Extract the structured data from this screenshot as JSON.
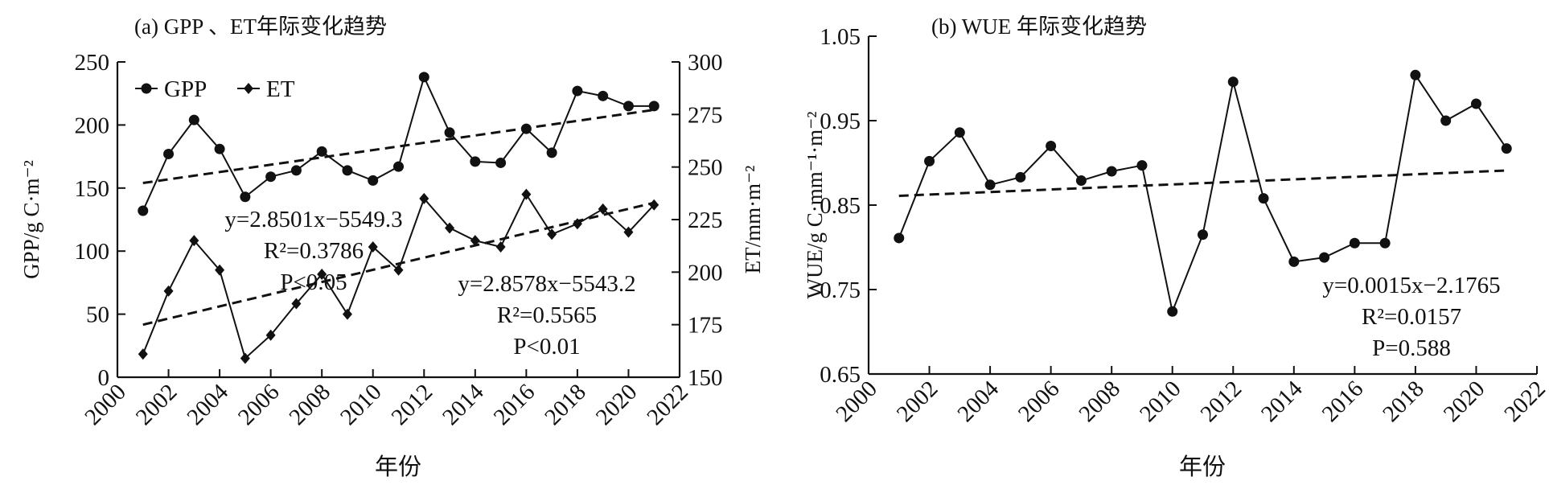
{
  "chart_data": [
    {
      "type": "line",
      "title": "(a) GPP 、ET年际变化趋势",
      "xlabel": "年份",
      "ylabel": "GPP/g C·m⁻²",
      "ylabel_right": "ET/mm·m⁻²",
      "xlim": [
        2000,
        2022
      ],
      "xticks": [
        "2000",
        "2002",
        "2004",
        "2006",
        "2008",
        "2010",
        "2012",
        "2014",
        "2016",
        "2018",
        "2020",
        "2022"
      ],
      "ylim": [
        0,
        250
      ],
      "yticks": [
        "0",
        "50",
        "100",
        "150",
        "200",
        "250"
      ],
      "ylim_right": [
        150,
        300
      ],
      "yticks_right": [
        "150",
        "175",
        "200",
        "225",
        "250",
        "275",
        "300"
      ],
      "legend": {
        "position": "top-left",
        "entries": [
          "GPP",
          "ET"
        ]
      },
      "x": [
        2001,
        2002,
        2003,
        2004,
        2005,
        2006,
        2007,
        2008,
        2009,
        2010,
        2011,
        2012,
        2013,
        2014,
        2015,
        2016,
        2017,
        2018,
        2019,
        2020,
        2021
      ],
      "series": [
        {
          "name": "GPP",
          "axis": "left",
          "marker": "circle",
          "values": [
            132,
            177,
            204,
            181,
            143,
            159,
            164,
            179,
            164,
            156,
            167,
            238,
            194,
            171,
            170,
            197,
            178,
            227,
            223,
            215,
            215
          ],
          "trend": {
            "from": [
              2001,
              154
            ],
            "to": [
              2021,
              212
            ]
          }
        },
        {
          "name": "ET",
          "axis": "right",
          "marker": "diamond",
          "values": [
            161,
            191,
            215,
            201,
            159,
            170,
            185,
            199,
            180,
            212,
            201,
            235,
            221,
            215,
            212,
            237,
            218,
            223,
            230,
            219,
            232
          ],
          "trend": {
            "from": [
              2001,
              175
            ],
            "to": [
              2021,
              233
            ]
          }
        }
      ],
      "annotations": [
        {
          "id": "gpp",
          "lines": [
            "y=2.8501x−5549.3",
            "R²=0.3786",
            "P<0.05"
          ]
        },
        {
          "id": "et",
          "lines": [
            "y=2.8578x−5543.2",
            "R²=0.5565",
            "P<0.01"
          ]
        }
      ]
    },
    {
      "type": "line",
      "title": "(b) WUE 年际变化趋势",
      "xlabel": "年份",
      "ylabel": "WUE/g C·mm⁻¹·m⁻²",
      "xlim": [
        2000,
        2022
      ],
      "xticks": [
        "2000",
        "2002",
        "2004",
        "2006",
        "2008",
        "2010",
        "2012",
        "2014",
        "2016",
        "2018",
        "2020",
        "2022"
      ],
      "ylim": [
        0.65,
        1.05
      ],
      "yticks": [
        "0.65",
        "0.75",
        "0.85",
        "0.95",
        "1.05"
      ],
      "x": [
        2001,
        2002,
        2003,
        2004,
        2005,
        2006,
        2007,
        2008,
        2009,
        2010,
        2011,
        2012,
        2013,
        2014,
        2015,
        2016,
        2017,
        2018,
        2019,
        2020,
        2021
      ],
      "series": [
        {
          "name": "WUE",
          "marker": "circle",
          "values": [
            0.811,
            0.902,
            0.936,
            0.874,
            0.883,
            0.92,
            0.879,
            0.89,
            0.897,
            0.724,
            0.815,
            0.996,
            0.858,
            0.783,
            0.788,
            0.805,
            0.805,
            1.004,
            0.95,
            0.97,
            0.917
          ],
          "trend": {
            "from": [
              2001,
              0.861
            ],
            "to": [
              2021,
              0.891
            ]
          }
        }
      ],
      "annotations": [
        {
          "id": "wue",
          "lines": [
            "y=0.0015x−2.1765",
            "R²=0.0157",
            "P=0.588"
          ]
        }
      ]
    }
  ]
}
